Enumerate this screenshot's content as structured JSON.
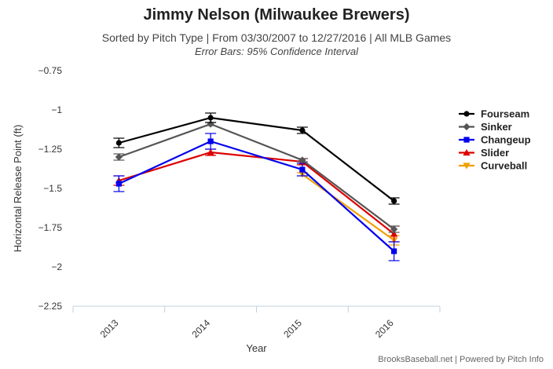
{
  "header": {
    "title": "Jimmy Nelson (Milwaukee Brewers)",
    "subtitle": "Sorted by Pitch Type | From 03/30/2007 to 12/27/2016 | All MLB Games",
    "subtitle2": "Error Bars: 95% Confidence Interval"
  },
  "footer": {
    "credit": "BrooksBaseball.net | Powered by Pitch Info"
  },
  "chart_data": {
    "type": "line",
    "title": "Jimmy Nelson (Milwaukee Brewers)",
    "xlabel": "Year",
    "ylabel": "Horizontal Release Point (ft)",
    "categories": [
      "2013",
      "2014",
      "2015",
      "2016"
    ],
    "ylim": [
      -2.25,
      -0.75
    ],
    "yticks": [
      -0.75,
      -1,
      -1.25,
      -1.5,
      -1.75,
      -2,
      -2.25
    ],
    "ytick_labels": [
      "−0.75",
      "−1",
      "−1.25",
      "−1.5",
      "−1.75",
      "−2",
      "−2.25"
    ],
    "legend_position": "right",
    "series": [
      {
        "name": "Fourseam",
        "color": "#000000",
        "marker": "circle",
        "values": [
          -1.21,
          -1.05,
          -1.13,
          -1.58
        ],
        "err_low": [
          -1.24,
          -1.08,
          -1.15,
          -1.6
        ],
        "err_high": [
          -1.18,
          -1.02,
          -1.11,
          -1.56
        ]
      },
      {
        "name": "Sinker",
        "color": "#555555",
        "marker": "diamond",
        "values": [
          -1.3,
          -1.09,
          -1.32,
          -1.76
        ],
        "err_low": [
          -1.32,
          -1.1,
          -1.33,
          -1.78
        ],
        "err_high": [
          -1.28,
          -1.08,
          -1.31,
          -1.74
        ]
      },
      {
        "name": "Changeup",
        "color": "#0000ee",
        "marker": "square",
        "values": [
          -1.47,
          -1.2,
          -1.38,
          -1.9
        ],
        "err_low": [
          -1.52,
          -1.25,
          -1.42,
          -1.96
        ],
        "err_high": [
          -1.42,
          -1.15,
          -1.34,
          -1.84
        ]
      },
      {
        "name": "Slider",
        "color": "#dd0000",
        "marker": "triangle",
        "values": [
          -1.45,
          -1.27,
          -1.33,
          -1.79
        ],
        "err_low": [
          -1.48,
          -1.29,
          -1.35,
          -1.84
        ],
        "err_high": [
          -1.42,
          -1.25,
          -1.31,
          -1.74
        ]
      },
      {
        "name": "Curveball",
        "color": "#f0a000",
        "marker": "triangle-down",
        "values": [
          null,
          null,
          -1.41,
          -1.83
        ],
        "err_low": [
          null,
          null,
          -1.42,
          -1.86
        ],
        "err_high": [
          null,
          null,
          -1.4,
          -1.8
        ]
      }
    ]
  }
}
